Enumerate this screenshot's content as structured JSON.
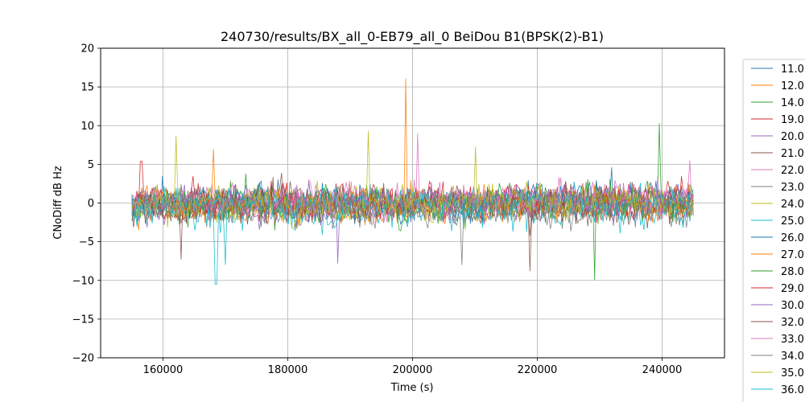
{
  "chart_data": {
    "type": "line",
    "title": "240730/results/BX_all_0-EB79_all_0 BeiDou B1(BPSK(2)-B1)",
    "xlabel": "Time (s)",
    "ylabel": "CNoDiff dB Hz",
    "xlim": [
      150000,
      250000
    ],
    "ylim": [
      -20,
      20
    ],
    "x_ticks": [
      160000,
      180000,
      200000,
      220000,
      240000
    ],
    "y_ticks": [
      -20,
      -15,
      -10,
      -5,
      0,
      5,
      10,
      15,
      20
    ],
    "x_tick_labels": [
      "160000",
      "180000",
      "200000",
      "220000",
      "240000"
    ],
    "y_tick_labels": [
      "−20",
      "−15",
      "−10",
      "−5",
      "0",
      "5",
      "10",
      "15",
      "20"
    ],
    "grid": true,
    "legend_position": "right, outside plot",
    "legend_entries": [
      "11.0",
      "12.0",
      "14.0",
      "19.0",
      "20.0",
      "21.0",
      "22.0",
      "23.0",
      "24.0",
      "25.0",
      "26.0",
      "27.0",
      "28.0",
      "29.0",
      "30.0",
      "32.0",
      "33.0",
      "34.0",
      "35.0",
      "36.0"
    ],
    "series": [
      {
        "name": "11.0",
        "color": "#1f77b4",
        "x_range": [
          155000,
          245000
        ],
        "mean": 0.0,
        "spread": 2.0,
        "spikes": [
          {
            "x": 160000,
            "y": 3.5
          },
          {
            "x": 232000,
            "y": 4.6
          }
        ]
      },
      {
        "name": "12.0",
        "color": "#ff7f0e",
        "x_range": [
          155000,
          245000
        ],
        "mean": -0.5,
        "spread": 1.8,
        "spikes": [
          {
            "x": 199000,
            "y": 16.1
          },
          {
            "x": 156000,
            "y": -3.5
          }
        ]
      },
      {
        "name": "14.0",
        "color": "#2ca02c",
        "x_range": [
          155000,
          245000
        ],
        "mean": 0.0,
        "spread": 2.0,
        "spikes": [
          {
            "x": 239500,
            "y": 10.3
          },
          {
            "x": 229200,
            "y": -10.0
          }
        ]
      },
      {
        "name": "19.0",
        "color": "#d62728",
        "x_range": [
          155000,
          245000
        ],
        "mean": 0.5,
        "spread": 2.0,
        "spikes": [
          {
            "x": 156500,
            "y": 5.4
          }
        ]
      },
      {
        "name": "20.0",
        "color": "#9467bd",
        "x_range": [
          155000,
          245000
        ],
        "mean": -0.5,
        "spread": 2.0,
        "spikes": [
          {
            "x": 188000,
            "y": -7.8
          }
        ]
      },
      {
        "name": "21.0",
        "color": "#8c564b",
        "x_range": [
          155000,
          245000
        ],
        "mean": 0.0,
        "spread": 2.2,
        "spikes": [
          {
            "x": 218800,
            "y": -8.8
          },
          {
            "x": 163000,
            "y": -7.3
          }
        ]
      },
      {
        "name": "22.0",
        "color": "#e377c2",
        "x_range": [
          155000,
          245000
        ],
        "mean": 0.5,
        "spread": 2.0,
        "spikes": [
          {
            "x": 200800,
            "y": 9.0
          }
        ]
      },
      {
        "name": "23.0",
        "color": "#7f7f7f",
        "x_range": [
          155000,
          245000
        ],
        "mean": -1.0,
        "spread": 1.8,
        "spikes": [
          {
            "x": 208000,
            "y": -8.0
          }
        ]
      },
      {
        "name": "24.0",
        "color": "#bcbd22",
        "x_range": [
          155000,
          245000
        ],
        "mean": 0.0,
        "spread": 2.0,
        "spikes": [
          {
            "x": 162000,
            "y": 8.7
          },
          {
            "x": 193000,
            "y": 9.3
          }
        ]
      },
      {
        "name": "25.0",
        "color": "#17becf",
        "x_range": [
          155000,
          245000
        ],
        "mean": -1.0,
        "spread": 2.0,
        "spikes": [
          {
            "x": 168500,
            "y": -10.5
          },
          {
            "x": 170000,
            "y": -8.0
          }
        ]
      },
      {
        "name": "26.0",
        "color": "#1f77b4",
        "x_range": [
          155000,
          245000
        ],
        "mean": 0.5,
        "spread": 1.8,
        "spikes": []
      },
      {
        "name": "27.0",
        "color": "#ff7f0e",
        "x_range": [
          155000,
          245000
        ],
        "mean": 0.0,
        "spread": 1.8,
        "spikes": [
          {
            "x": 168000,
            "y": 7.0
          }
        ]
      },
      {
        "name": "28.0",
        "color": "#2ca02c",
        "x_range": [
          155000,
          245000
        ],
        "mean": 0.0,
        "spread": 1.8,
        "spikes": []
      },
      {
        "name": "29.0",
        "color": "#d62728",
        "x_range": [
          155000,
          245000
        ],
        "mean": 0.0,
        "spread": 1.8,
        "spikes": []
      },
      {
        "name": "30.0",
        "color": "#9467bd",
        "x_range": [
          155000,
          245000
        ],
        "mean": 0.0,
        "spread": 1.6,
        "spikes": []
      },
      {
        "name": "32.0",
        "color": "#8c564b",
        "x_range": [
          155000,
          245000
        ],
        "mean": 0.0,
        "spread": 2.0,
        "spikes": []
      },
      {
        "name": "33.0",
        "color": "#e377c2",
        "x_range": [
          155000,
          245000
        ],
        "mean": 0.5,
        "spread": 1.8,
        "spikes": [
          {
            "x": 244500,
            "y": 5.5
          }
        ]
      },
      {
        "name": "34.0",
        "color": "#7f7f7f",
        "x_range": [
          155000,
          245000
        ],
        "mean": 0.0,
        "spread": 1.8,
        "spikes": []
      },
      {
        "name": "35.0",
        "color": "#bcbd22",
        "x_range": [
          155000,
          245000
        ],
        "mean": 0.0,
        "spread": 1.8,
        "spikes": [
          {
            "x": 210000,
            "y": 7.3
          }
        ]
      },
      {
        "name": "36.0",
        "color": "#17becf",
        "x_range": [
          155000,
          245000
        ],
        "mean": 0.0,
        "spread": 1.8,
        "spikes": []
      }
    ]
  }
}
